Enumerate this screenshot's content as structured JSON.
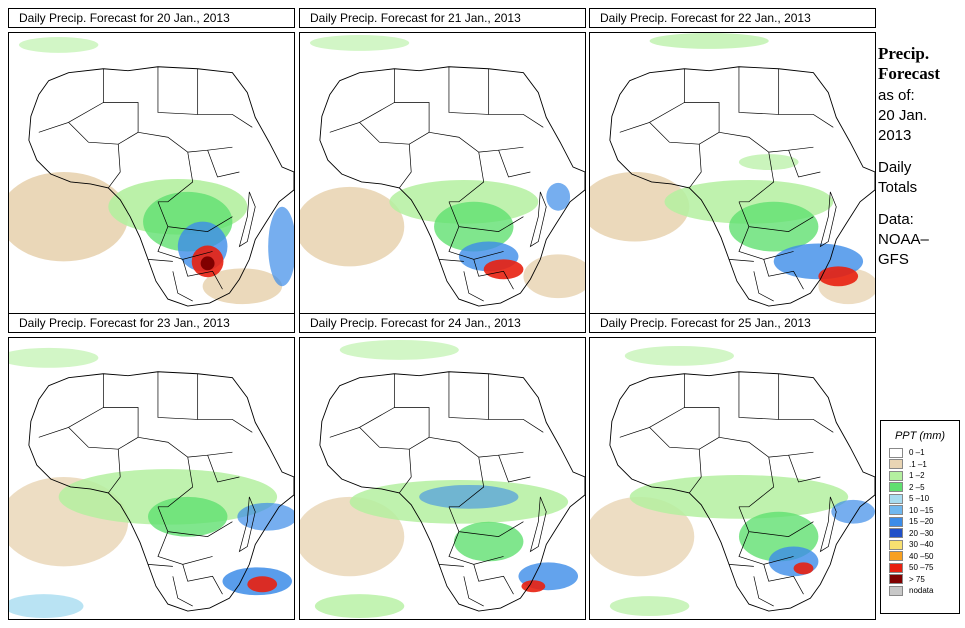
{
  "panels": [
    {
      "title": "Daily Precip. Forecast for  20 Jan., 2013"
    },
    {
      "title": "Daily Precip. Forecast for  21 Jan., 2013"
    },
    {
      "title": "Daily Precip. Forecast for  22 Jan., 2013"
    },
    {
      "title": "Daily Precip. Forecast for  23 Jan., 2013"
    },
    {
      "title": "Daily Precip. Forecast for  24 Jan., 2013"
    },
    {
      "title": "Daily Precip. Forecast for  25 Jan., 2013"
    }
  ],
  "sidebar": {
    "title_line1": "Precip.",
    "title_line2": "Forecast",
    "asof_line1": "as of:",
    "asof_line2": "20 Jan.",
    "asof_line3": "2013",
    "totals_line1": "Daily",
    "totals_line2": "Totals",
    "data_line1": "Data:",
    "data_line2": "NOAA–",
    "data_line3": "GFS"
  },
  "legend": {
    "title": "PPT (mm)",
    "items": [
      {
        "label": "0 –1",
        "color": "#ffffff"
      },
      {
        "label": ".1 –1",
        "color": "#e9d5b4"
      },
      {
        "label": "1 –2",
        "color": "#b4f0a0"
      },
      {
        "label": "2 –5",
        "color": "#60e070"
      },
      {
        "label": "5 –10",
        "color": "#a8dcf0"
      },
      {
        "label": "10 –15",
        "color": "#70b8f0"
      },
      {
        "label": "15 –20",
        "color": "#3c8ce8"
      },
      {
        "label": "20 –30",
        "color": "#2050c8"
      },
      {
        "label": "30 –40",
        "color": "#f8e070"
      },
      {
        "label": "40 –50",
        "color": "#f8a020"
      },
      {
        "label": "50 –75",
        "color": "#e82010"
      },
      {
        "label": "> 75",
        "color": "#800000"
      },
      {
        "label": "nodata",
        "color": "#c8c8c8"
      }
    ]
  },
  "map_palette": {
    "sand": "#e9d5b4",
    "light_green": "#b4f0a0",
    "green": "#60e070",
    "light_blue": "#a8dcf0",
    "blue": "#3c8ce8",
    "dark_blue": "#2050c8",
    "orange": "#f8a020",
    "red": "#e82010",
    "dark_red": "#800000"
  }
}
